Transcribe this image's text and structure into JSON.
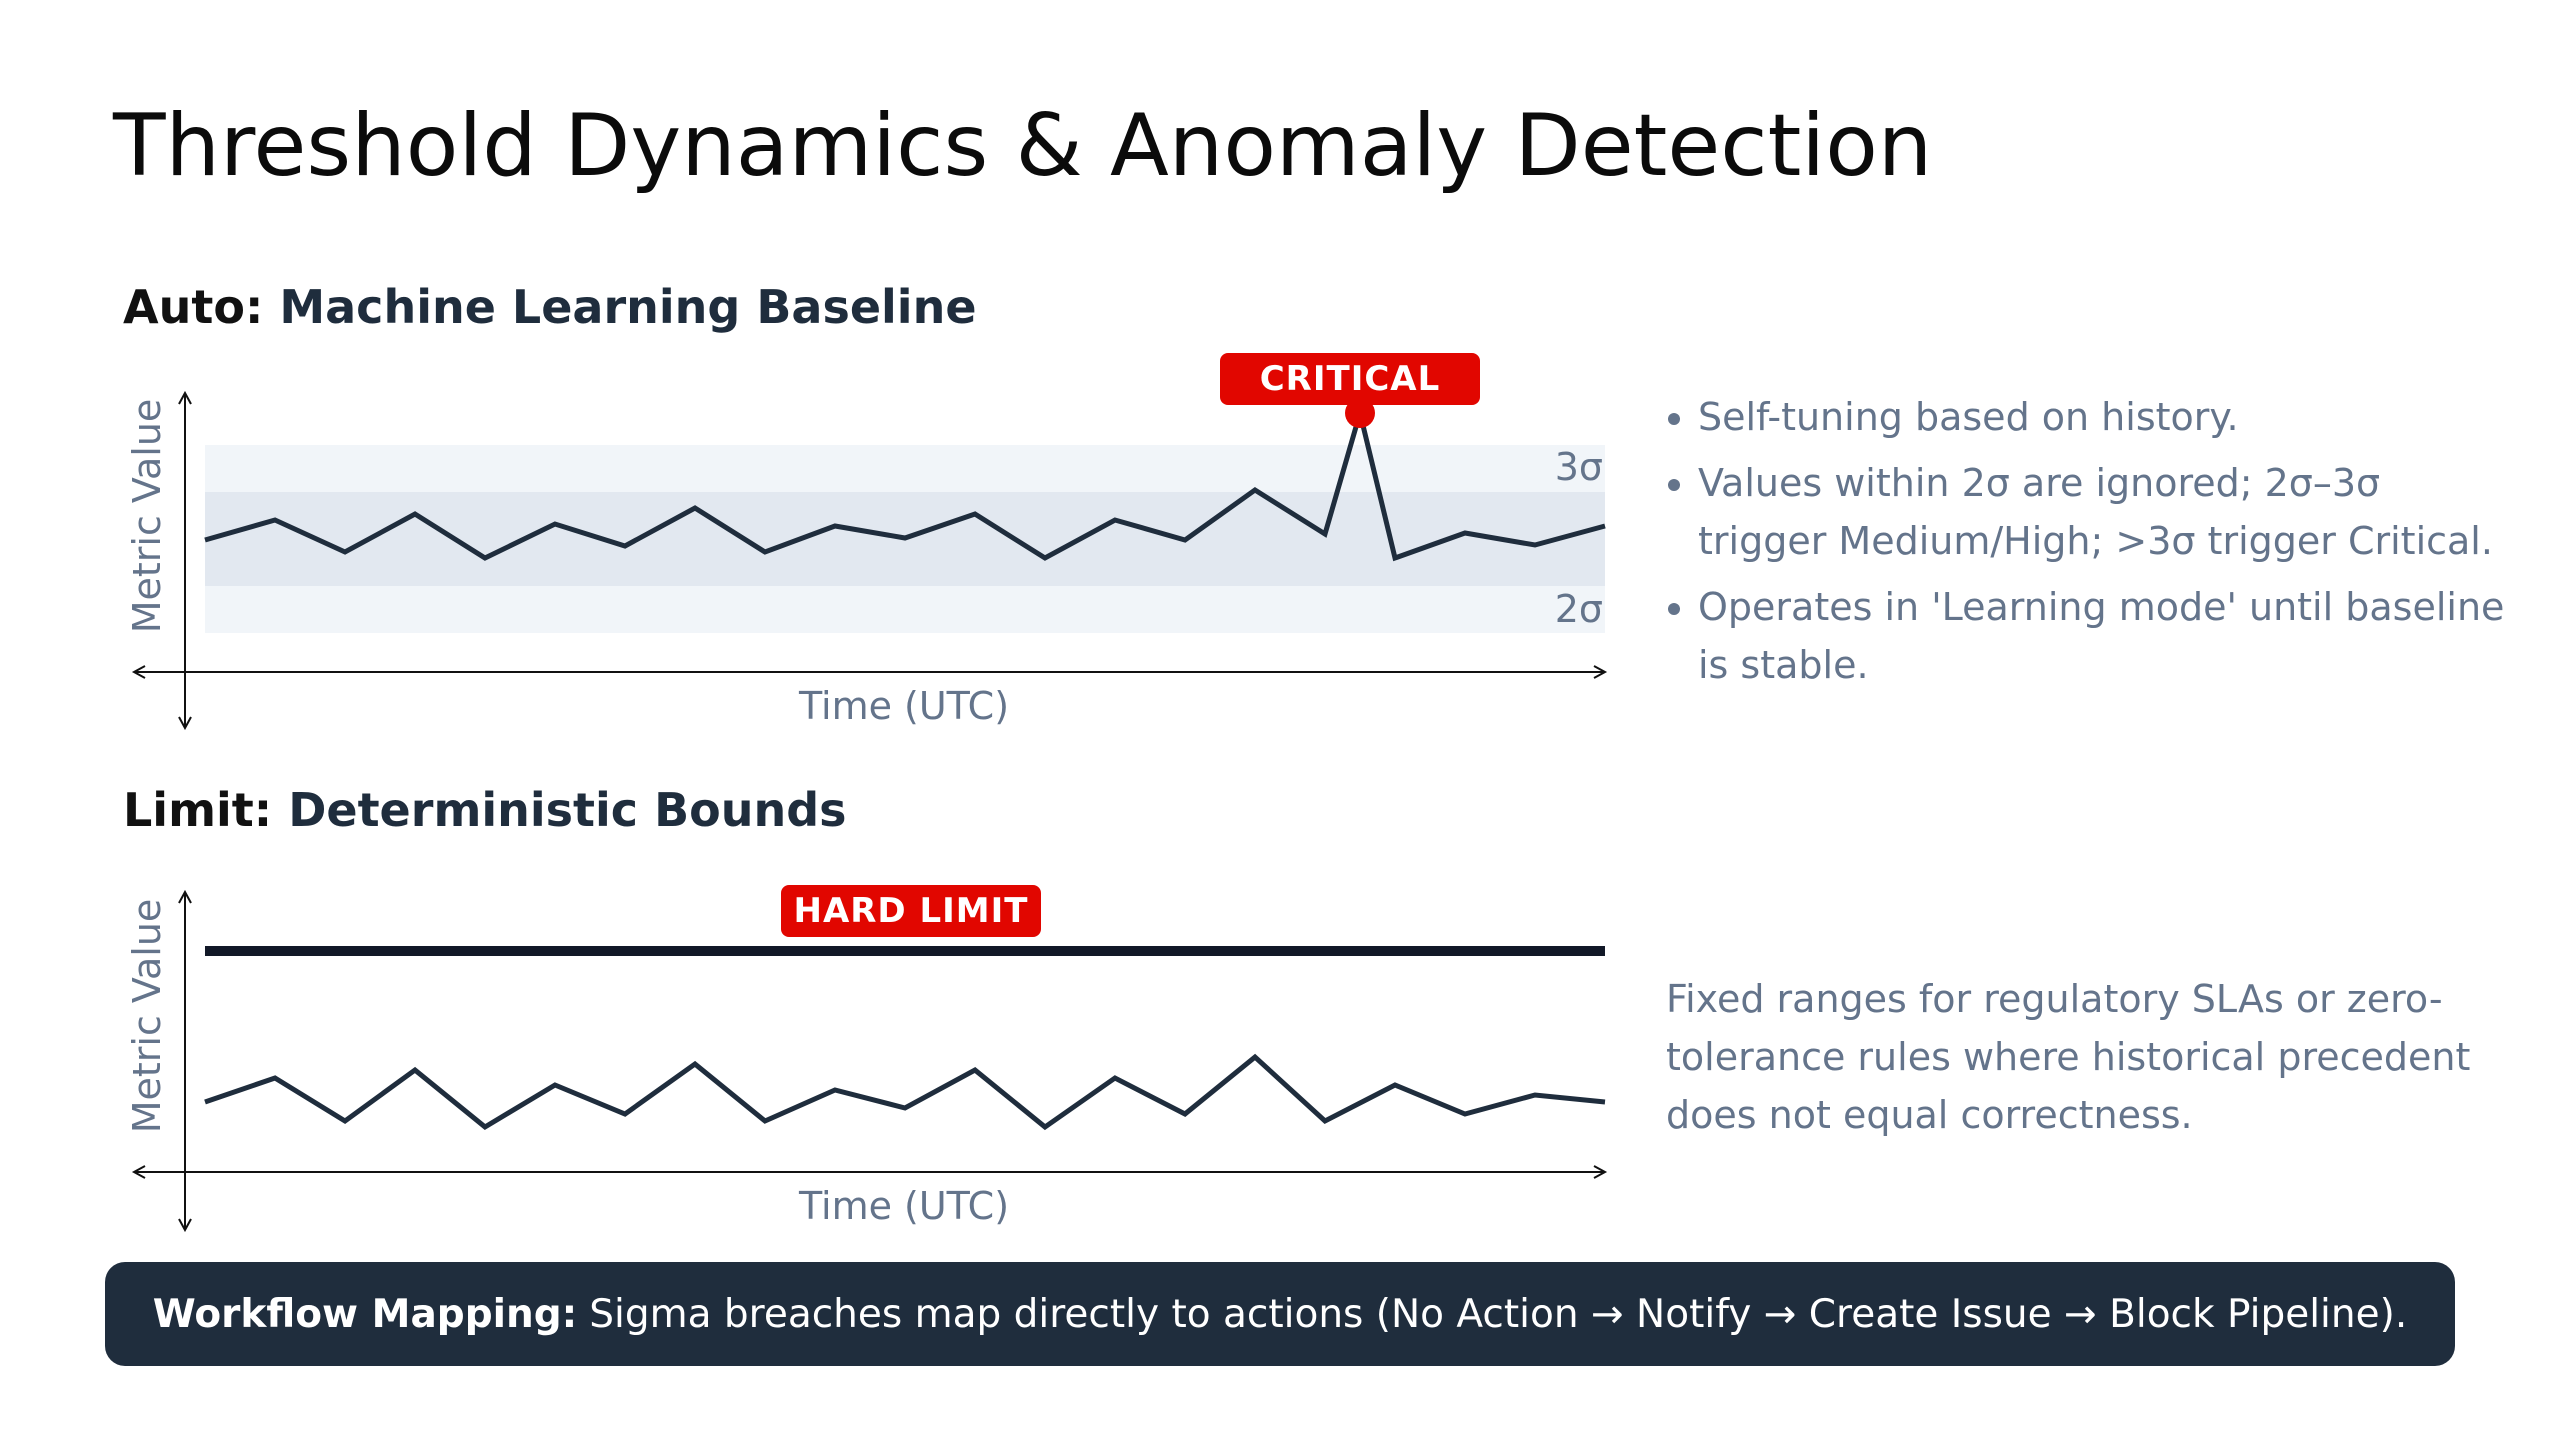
{
  "title": "Threshold Dynamics & Anomaly Detection",
  "auto_section": {
    "heading_prefix": "Auto:",
    "heading_rest": "Machine Learning Baseline",
    "y_axis_label": "Metric Value",
    "x_axis_label": "Time (UTC)",
    "band_upper_label": "3σ",
    "band_lower_label": "2σ",
    "badge": "CRITICAL",
    "bullets": [
      "Self-tuning based on history.",
      "Values within 2σ are ignored; 2σ–3σ trigger Medium/High; >3σ trigger Critical.",
      "Operates in 'Learning mode' until baseline is stable."
    ]
  },
  "limit_section": {
    "heading_prefix": "Limit:",
    "heading_rest": "Deterministic Bounds",
    "y_axis_label": "Metric Value",
    "x_axis_label": "Time (UTC)",
    "badge": "HARD LIMIT",
    "description": "Fixed ranges for regulatory SLAs or zero-tolerance rules where historical precedent does not equal correctness."
  },
  "footer": {
    "bold": "Workflow Mapping:",
    "text": "Sigma breaches map directly to actions (No Action → Notify → Create Issue → Block Pipeline)."
  },
  "colors": {
    "line": "#1f2d3d",
    "alert": "#e10600",
    "inner_band": "#e2e8f0",
    "outer_band": "#f1f5f9",
    "muted_text": "#64748b"
  }
}
